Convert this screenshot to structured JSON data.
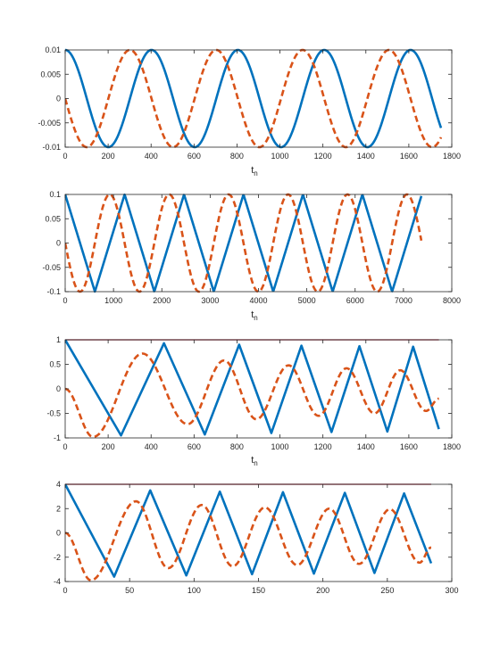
{
  "figure": {
    "background": "#ffffff",
    "axis_color": "#262626"
  },
  "chart_data": [
    {
      "type": "line",
      "title": "",
      "xlabel": "t",
      "xlabel_sub": "n",
      "ylabel": "",
      "xlim": [
        0,
        1800
      ],
      "ylim": [
        -0.01,
        0.01
      ],
      "xticks": [
        0,
        200,
        400,
        600,
        800,
        1000,
        1200,
        1400,
        1600,
        1800
      ],
      "xtick_labels": [
        "0",
        "200",
        "400",
        "600",
        "800",
        "1000",
        "1200",
        "1400",
        "1600",
        "1800"
      ],
      "yticks": [
        -0.01,
        -0.005,
        0,
        0.005,
        0.01
      ],
      "ytick_labels": [
        "-0.01",
        "-0.005",
        "0",
        "0.005",
        "0.01"
      ],
      "grid": false,
      "series": [
        {
          "style": "solid",
          "color": "#0072BD",
          "shape": "cos",
          "amplitude": 0.01,
          "period": 402,
          "phase": 0,
          "x_end": 1750
        },
        {
          "style": "dashed",
          "color": "#D95319",
          "shape": "sin",
          "amplitude": 0.01,
          "period": 402,
          "phase": 0,
          "x_end": 1750
        }
      ]
    },
    {
      "type": "line",
      "title": "",
      "xlabel": "t",
      "xlabel_sub": "n",
      "ylabel": "",
      "xlim": [
        0,
        8000
      ],
      "ylim": [
        -0.1,
        0.1
      ],
      "xticks": [
        0,
        1000,
        2000,
        3000,
        4000,
        5000,
        6000,
        7000,
        8000
      ],
      "xtick_labels": [
        "0",
        "1000",
        "2000",
        "3000",
        "4000",
        "5000",
        "6000",
        "7000",
        "8000"
      ],
      "yticks": [
        -0.1,
        -0.05,
        0,
        0.05,
        0.1
      ],
      "ytick_labels": [
        "-0.1",
        "-0.05",
        "0",
        "0.05",
        "0.1"
      ],
      "grid": false,
      "series": [
        {
          "style": "solid",
          "color": "#0072BD",
          "shape": "triangle",
          "amplitude": 0.1,
          "period": 1230,
          "phase": 0,
          "x_end": 7370
        },
        {
          "style": "dashed",
          "color": "#D95319",
          "shape": "sin",
          "amplitude": 0.1,
          "period": 1230,
          "phase": 0,
          "x_end": 7370
        }
      ]
    },
    {
      "type": "line",
      "title": "",
      "xlabel": "t",
      "xlabel_sub": "n",
      "ylabel": "",
      "xlim": [
        0,
        1800
      ],
      "ylim": [
        -1,
        1
      ],
      "xticks": [
        0,
        200,
        400,
        600,
        800,
        1000,
        1200,
        1400,
        1600,
        1800
      ],
      "xtick_labels": [
        "0",
        "200",
        "400",
        "600",
        "800",
        "1000",
        "1200",
        "1400",
        "1600",
        "1800"
      ],
      "yticks": [
        -1,
        -0.5,
        0,
        0.5,
        1
      ],
      "ytick_labels": [
        "-1",
        "-0.5",
        "0",
        "0.5",
        "1"
      ],
      "grid": false,
      "reference_line": {
        "y": 1,
        "x_end": 1740,
        "color": "#A2142F"
      },
      "series": [
        {
          "style": "solid",
          "color": "#0072BD",
          "shape": "points",
          "x": [
            0,
            260,
            460,
            650,
            810,
            960,
            1100,
            1240,
            1370,
            1500,
            1620,
            1740
          ],
          "y": [
            1,
            -0.95,
            0.93,
            -0.93,
            0.9,
            -0.9,
            0.88,
            -0.88,
            0.87,
            -0.87,
            0.86,
            -0.82
          ]
        },
        {
          "style": "dashed",
          "color": "#D95319",
          "shape": "smooth",
          "x": [
            0,
            130,
            360,
            570,
            740,
            890,
            1040,
            1180,
            1310,
            1440,
            1560,
            1680,
            1740
          ],
          "y": [
            0,
            -0.98,
            0.72,
            -0.72,
            0.58,
            -0.62,
            0.48,
            -0.55,
            0.42,
            -0.5,
            0.38,
            -0.45,
            -0.2
          ]
        }
      ]
    },
    {
      "type": "line",
      "title": "",
      "xlabel": "",
      "xlabel_sub": "",
      "ylabel": "",
      "xlim": [
        0,
        300
      ],
      "ylim": [
        -4,
        4
      ],
      "xticks": [
        0,
        50,
        100,
        150,
        200,
        250,
        300
      ],
      "xtick_labels": [
        "0",
        "50",
        "100",
        "150",
        "200",
        "250",
        "300"
      ],
      "yticks": [
        -4,
        -2,
        0,
        2,
        4
      ],
      "ytick_labels": [
        "-4",
        "-2",
        "0",
        "2",
        "4"
      ],
      "grid": false,
      "reference_line": {
        "y": 4,
        "x_end": 284,
        "color": "#A2142F"
      },
      "series": [
        {
          "style": "solid",
          "color": "#0072BD",
          "shape": "points",
          "x": [
            0,
            38,
            66,
            94,
            120,
            145,
            169,
            193,
            217,
            240,
            263,
            284
          ],
          "y": [
            4,
            -3.6,
            3.5,
            -3.5,
            3.4,
            -3.4,
            3.35,
            -3.35,
            3.3,
            -3.3,
            3.25,
            -2.5
          ]
        },
        {
          "style": "dashed",
          "color": "#D95319",
          "shape": "smooth",
          "x": [
            0,
            20,
            55,
            80,
            106,
            130,
            155,
            180,
            205,
            228,
            252,
            275,
            284
          ],
          "y": [
            0,
            -3.9,
            2.6,
            -2.9,
            2.3,
            -2.75,
            2.1,
            -2.65,
            2.0,
            -2.55,
            1.95,
            -2.45,
            -1.2
          ]
        }
      ]
    }
  ]
}
